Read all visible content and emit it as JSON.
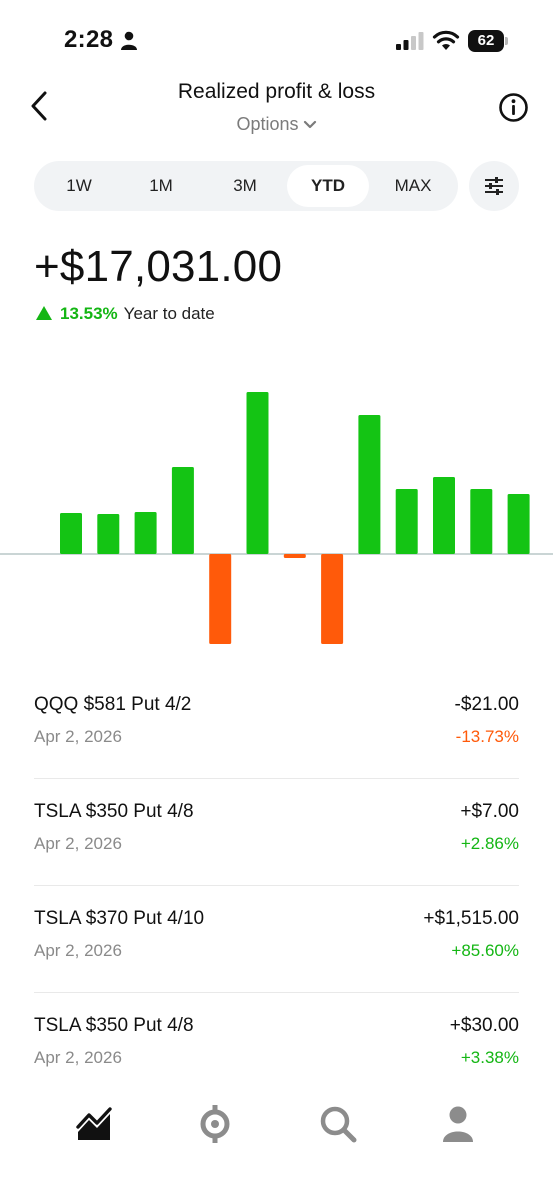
{
  "status": {
    "time": "2:28",
    "battery": "62"
  },
  "header": {
    "title": "Realized profit & loss",
    "subtitle": "Options"
  },
  "ranges": [
    {
      "label": "1W",
      "active": false
    },
    {
      "label": "1M",
      "active": false
    },
    {
      "label": "3M",
      "active": false
    },
    {
      "label": "YTD",
      "active": true
    },
    {
      "label": "MAX",
      "active": false
    }
  ],
  "summary": {
    "total": "+$17,031.00",
    "change_pct": "13.53%",
    "change_label": "Year to date"
  },
  "colors": {
    "gain": "#14c414",
    "loss": "#ff5a0a",
    "baseline": "#b9c7c7"
  },
  "chart_data": {
    "type": "bar",
    "values": [
      41,
      40,
      42,
      87,
      -90,
      162,
      -4,
      -90,
      139,
      65,
      77,
      65,
      60
    ],
    "ylim": [
      -110,
      180
    ],
    "grid": false
  },
  "transactions": [
    {
      "name": "QQQ $581 Put 4/2",
      "date": "Apr 2, 2026",
      "amount": "-$21.00",
      "pct": "-13.73%",
      "positive": false
    },
    {
      "name": "TSLA $350 Put 4/8",
      "date": "Apr 2, 2026",
      "amount": "+$7.00",
      "pct": "+2.86%",
      "positive": true
    },
    {
      "name": "TSLA $370 Put 4/10",
      "date": "Apr 2, 2026",
      "amount": "+$1,515.00",
      "pct": "+85.60%",
      "positive": true
    },
    {
      "name": "TSLA $350 Put 4/8",
      "date": "Apr 2, 2026",
      "amount": "+$30.00",
      "pct": "+3.38%",
      "positive": true
    }
  ],
  "tabs": [
    {
      "icon": "chart-icon",
      "active": true
    },
    {
      "icon": "crypto-icon",
      "active": false
    },
    {
      "icon": "search-icon",
      "active": false
    },
    {
      "icon": "profile-icon",
      "active": false
    }
  ]
}
